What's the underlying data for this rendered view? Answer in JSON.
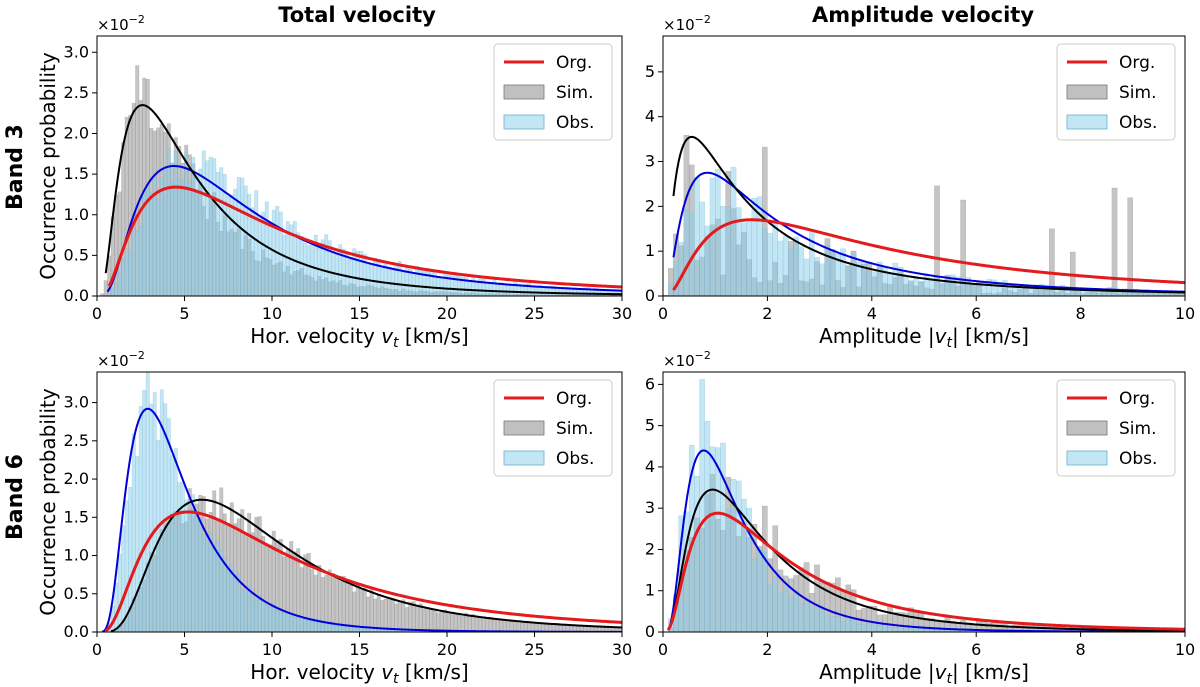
{
  "figure": {
    "col_titles": [
      "Total velocity",
      "Amplitude velocity"
    ],
    "row_labels": [
      "Band 3",
      "Band 6"
    ],
    "ylabel": "Occurrence probability",
    "legend": [
      "Org.",
      "Sim.",
      "Obs."
    ],
    "colors": {
      "org": "#e41a1c",
      "sim_fill": "#9e9e9e",
      "obs_fill": "#87ceeb",
      "black_fit": "#000000",
      "blue_fit": "#0000dd"
    }
  },
  "chart_data": [
    {
      "id": "b3-total",
      "type": "bar",
      "title": "Total velocity",
      "row_label": "Band 3",
      "xlabel_main": "Hor. velocity ",
      "xlabel_var": "v",
      "xlabel_sub": "t",
      "xlabel_unit": " [km/s]",
      "ylabel": "Occurrence probability",
      "y_multiplier_base": "×10",
      "y_multiplier_exp": "−2",
      "xlim": [
        0,
        30
      ],
      "ylim": [
        0,
        3.2
      ],
      "xticks": [
        0,
        5,
        10,
        15,
        20,
        25,
        30
      ],
      "yticks": [
        0.0,
        0.5,
        1.0,
        1.5,
        2.0,
        2.5,
        3.0
      ],
      "ytick_labels": [
        "0.0",
        "0.5",
        "1.0",
        "1.5",
        "2.0",
        "2.5",
        "3.0"
      ],
      "legend": [
        "Org.",
        "Sim.",
        "Obs."
      ],
      "hist_bins": 150,
      "series": [
        {
          "name": "Org.",
          "kind": "curve",
          "color": "#e41a1c",
          "model": "lognormal",
          "peak_x": 4.5,
          "peak_y": 1.34,
          "sigma": 0.85,
          "start": 0.7
        },
        {
          "name": "Sim. fit",
          "kind": "curve",
          "color": "#000000",
          "model": "lognormal",
          "peak_x": 2.6,
          "peak_y": 2.35,
          "sigma": 0.8,
          "start": 0.5
        },
        {
          "name": "Obs. fit",
          "kind": "curve",
          "color": "#0000dd",
          "model": "lognormal",
          "peak_x": 4.4,
          "peak_y": 1.6,
          "sigma": 0.76,
          "start": 0.6
        },
        {
          "name": "Sim.",
          "kind": "hist",
          "model": "lognormal",
          "peak_x": 2.6,
          "peak_y": 2.5,
          "sigma": 0.72,
          "noise": 0.22,
          "seed": 11
        },
        {
          "name": "Obs.",
          "kind": "hist",
          "model": "lognormal",
          "peak_x": 5.0,
          "peak_y": 1.6,
          "sigma": 0.72,
          "noise": 0.18,
          "seed": 23
        }
      ]
    },
    {
      "id": "b3-amp",
      "type": "bar",
      "title": "Amplitude velocity",
      "row_label": "Band 3",
      "xlabel_main": "Amplitude |",
      "xlabel_var": "v",
      "xlabel_sub": "t",
      "xlabel_unit": "| [km/s]",
      "ylabel": "",
      "y_multiplier_base": "×10",
      "y_multiplier_exp": "−2",
      "xlim": [
        0,
        10
      ],
      "ylim": [
        0,
        5.8
      ],
      "xticks": [
        0,
        2,
        4,
        6,
        8,
        10
      ],
      "yticks": [
        0,
        1,
        2,
        3,
        4,
        5
      ],
      "ytick_labels": [
        "0",
        "1",
        "2",
        "3",
        "4",
        "5"
      ],
      "legend": [
        "Org.",
        "Sim.",
        "Obs."
      ],
      "hist_bins": 100,
      "series": [
        {
          "name": "Org.",
          "kind": "curve",
          "color": "#e41a1c",
          "model": "lognormal",
          "peak_x": 1.7,
          "peak_y": 1.7,
          "sigma": 0.95,
          "start": 0.2
        },
        {
          "name": "Sim. fit",
          "kind": "curve",
          "color": "#000000",
          "model": "lognormal",
          "peak_x": 0.55,
          "peak_y": 3.55,
          "sigma": 1.05,
          "start": 0.2
        },
        {
          "name": "Obs. fit",
          "kind": "curve",
          "color": "#0000dd",
          "model": "lognormal",
          "peak_x": 0.85,
          "peak_y": 2.75,
          "sigma": 0.95,
          "start": 0.2
        },
        {
          "name": "Sim.",
          "kind": "hist",
          "model": "lognormal",
          "peak_x": 0.8,
          "peak_y": 2.6,
          "sigma": 1.0,
          "noise": 0.9,
          "seed": 5,
          "sparse": true
        },
        {
          "name": "Obs.",
          "kind": "hist",
          "model": "lognormal",
          "peak_x": 1.0,
          "peak_y": 2.3,
          "sigma": 0.9,
          "noise": 0.35,
          "seed": 41
        }
      ]
    },
    {
      "id": "b6-total",
      "type": "bar",
      "title": "",
      "row_label": "Band 6",
      "xlabel_main": "Hor. velocity ",
      "xlabel_var": "v",
      "xlabel_sub": "t",
      "xlabel_unit": " [km/s]",
      "ylabel": "Occurrence probability",
      "y_multiplier_base": "×10",
      "y_multiplier_exp": "−2",
      "xlim": [
        0,
        30
      ],
      "ylim": [
        0,
        3.4
      ],
      "xticks": [
        0,
        5,
        10,
        15,
        20,
        25,
        30
      ],
      "yticks": [
        0.0,
        0.5,
        1.0,
        1.5,
        2.0,
        2.5,
        3.0
      ],
      "ytick_labels": [
        "0.0",
        "0.5",
        "1.0",
        "1.5",
        "2.0",
        "2.5",
        "3.0"
      ],
      "legend": [
        "Org.",
        "Sim.",
        "Obs."
      ],
      "hist_bins": 150,
      "series": [
        {
          "name": "Org.",
          "kind": "curve",
          "color": "#e41a1c",
          "model": "lognormal",
          "peak_x": 5.2,
          "peak_y": 1.57,
          "sigma": 0.78,
          "start": 0.5
        },
        {
          "name": "Sim. fit",
          "kind": "curve",
          "color": "#000000",
          "model": "lognormal",
          "peak_x": 6.0,
          "peak_y": 1.73,
          "sigma": 0.62,
          "start": 0.8
        },
        {
          "name": "Obs. fit",
          "kind": "curve",
          "color": "#0000dd",
          "model": "lognormal",
          "peak_x": 2.9,
          "peak_y": 2.92,
          "sigma": 0.6,
          "start": 0.3
        },
        {
          "name": "Sim.",
          "kind": "hist",
          "model": "lognormal",
          "peak_x": 6.0,
          "peak_y": 1.72,
          "sigma": 0.62,
          "noise": 0.15,
          "seed": 17
        },
        {
          "name": "Obs.",
          "kind": "hist",
          "model": "lognormal",
          "peak_x": 3.0,
          "peak_y": 3.0,
          "sigma": 0.58,
          "noise": 0.15,
          "seed": 29
        }
      ]
    },
    {
      "id": "b6-amp",
      "type": "bar",
      "title": "",
      "row_label": "Band 6",
      "xlabel_main": "Amplitude |",
      "xlabel_var": "v",
      "xlabel_sub": "t",
      "xlabel_unit": "| [km/s]",
      "ylabel": "",
      "y_multiplier_base": "×10",
      "y_multiplier_exp": "−2",
      "xlim": [
        0,
        10
      ],
      "ylim": [
        0,
        6.3
      ],
      "xticks": [
        0,
        2,
        4,
        6,
        8,
        10
      ],
      "yticks": [
        0,
        1,
        2,
        3,
        4,
        5,
        6
      ],
      "ytick_labels": [
        "0",
        "1",
        "2",
        "3",
        "4",
        "5",
        "6"
      ],
      "legend": [
        "Org.",
        "Sim.",
        "Obs."
      ],
      "hist_bins": 100,
      "series": [
        {
          "name": "Org.",
          "kind": "curve",
          "color": "#e41a1c",
          "model": "lognormal",
          "peak_x": 1.05,
          "peak_y": 2.88,
          "sigma": 0.82,
          "start": 0.1
        },
        {
          "name": "Sim. fit",
          "kind": "curve",
          "color": "#000000",
          "model": "lognormal",
          "peak_x": 0.95,
          "peak_y": 3.45,
          "sigma": 0.76,
          "start": 0.15
        },
        {
          "name": "Obs. fit",
          "kind": "curve",
          "color": "#0000dd",
          "model": "lognormal",
          "peak_x": 0.78,
          "peak_y": 4.4,
          "sigma": 0.68,
          "start": 0.1
        },
        {
          "name": "Sim.",
          "kind": "hist",
          "model": "lognormal",
          "peak_x": 1.0,
          "peak_y": 3.3,
          "sigma": 0.78,
          "noise": 0.35,
          "seed": 7
        },
        {
          "name": "Obs.",
          "kind": "hist",
          "model": "lognormal",
          "peak_x": 0.75,
          "peak_y": 4.8,
          "sigma": 0.66,
          "noise": 0.3,
          "seed": 37
        }
      ]
    }
  ]
}
